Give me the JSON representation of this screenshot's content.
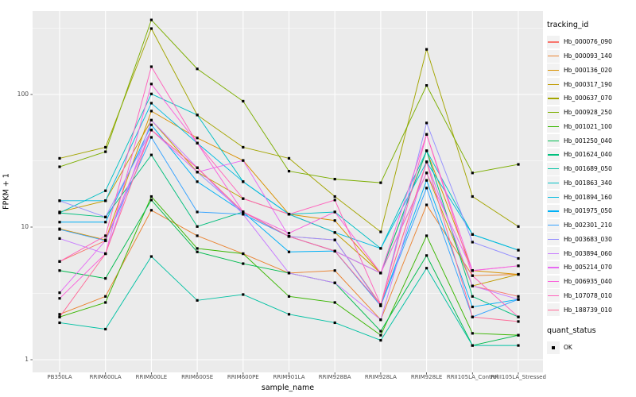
{
  "figure": {
    "y_axis": {
      "title": "FPKM + 1",
      "ticks": [
        {
          "label": "100",
          "value": 100
        },
        {
          "label": "10",
          "value": 10
        },
        {
          "label": "1",
          "value": 1
        }
      ]
    },
    "x_axis": {
      "title": "sample_name"
    },
    "legend": {
      "tracking_title": "tracking_id",
      "quant_title": "quant_status",
      "quant_item_label": "OK"
    },
    "colors": {
      "panel_bg": "#EBEBEB",
      "grid": "#FFFFFF",
      "tick_text": "#4D4D4D",
      "point": "#000000",
      "legend_key_bg": "#F2F2F2"
    }
  },
  "chart_data": {
    "type": "line",
    "title": "",
    "xlabel": "sample_name",
    "ylabel": "FPKM + 1",
    "y_scale": "log10",
    "ylim": [
      0.8,
      430
    ],
    "grid": true,
    "legend_position": "right",
    "point_shape": "filled-square",
    "point_status_label": "OK",
    "x_categories": [
      "PB350LA",
      "RRIM600LA",
      "RRIM600LE",
      "RRIM600SE",
      "RRIM600PE",
      "RRIM901LA",
      "RRIM928BA",
      "RRIM928LA",
      "RRIM928LE",
      "RRII105LA_Control",
      "RRII105LA_Stressed"
    ],
    "series": [
      {
        "name": "Hb_000076_090",
        "color": "#F8766D",
        "values": [
          5.5,
          7.9,
          54,
          28,
          13,
          8.5,
          8.0,
          2.6,
          31,
          3.6,
          3.0
        ]
      },
      {
        "name": "Hb_000093_140",
        "color": "#EA8331",
        "values": [
          2.2,
          3.0,
          13.4,
          8.6,
          6.3,
          4.5,
          4.7,
          2.0,
          14.7,
          4.3,
          4.4
        ]
      },
      {
        "name": "Hb_000136_020",
        "color": "#D89000",
        "values": [
          9.7,
          8.0,
          75,
          47,
          31.8,
          12.5,
          11.2,
          4.5,
          37.6,
          4.7,
          4.4
        ]
      },
      {
        "name": "Hb_000317_190",
        "color": "#C09B00",
        "values": [
          13,
          15.8,
          64,
          26,
          16.4,
          12.5,
          9.1,
          4.5,
          25.6,
          3.6,
          4.4
        ]
      },
      {
        "name": "Hb_000637_070",
        "color": "#A3A500",
        "values": [
          33,
          40,
          314,
          70,
          40,
          33,
          17,
          9.2,
          219,
          17,
          10.1
        ]
      },
      {
        "name": "Hb_000928_250",
        "color": "#7CAE00",
        "values": [
          28.5,
          37,
          365,
          156,
          89,
          26.4,
          23,
          21.6,
          117,
          25.6,
          29.7
        ]
      },
      {
        "name": "Hb_001021_100",
        "color": "#39B600",
        "values": [
          2.1,
          2.7,
          17,
          6.9,
          6.3,
          3.0,
          2.7,
          1.53,
          8.6,
          1.58,
          1.53
        ]
      },
      {
        "name": "Hb_001250_040",
        "color": "#00BB4E",
        "values": [
          4.7,
          4.1,
          16,
          6.5,
          5.3,
          4.5,
          3.8,
          1.64,
          6.1,
          1.28,
          1.53
        ]
      },
      {
        "name": "Hb_001624_040",
        "color": "#00BF7D",
        "values": [
          12.8,
          11.9,
          35,
          10.1,
          13,
          8.5,
          6.6,
          4.5,
          37.6,
          3.0,
          2.1
        ]
      },
      {
        "name": "Hb_001689_050",
        "color": "#00C1A3",
        "values": [
          1.9,
          1.7,
          6.0,
          2.8,
          3.1,
          2.2,
          1.9,
          1.4,
          4.9,
          1.28,
          1.28
        ]
      },
      {
        "name": "Hb_001863_340",
        "color": "#00BFC4",
        "values": [
          12.8,
          18.8,
          101,
          70,
          22,
          12.5,
          13,
          6.9,
          37.6,
          8.8,
          6.7
        ]
      },
      {
        "name": "Hb_001894_160",
        "color": "#00BAE0",
        "values": [
          15.8,
          15.8,
          86,
          43,
          22,
          12.5,
          9.1,
          6.9,
          31,
          8.8,
          6.7
        ]
      },
      {
        "name": "Hb_001975_050",
        "color": "#00B0F6",
        "values": [
          10.9,
          10.9,
          59,
          22,
          13,
          6.5,
          6.6,
          2.55,
          22.5,
          2.5,
          2.85
        ]
      },
      {
        "name": "Hb_002301_210",
        "color": "#35A2FF",
        "values": [
          9.6,
          7.9,
          47.5,
          13,
          12.5,
          8.5,
          6.6,
          2.55,
          19.7,
          2.1,
          2.85
        ]
      },
      {
        "name": "Hb_003683_030",
        "color": "#9590FF",
        "values": [
          15.8,
          11.9,
          54,
          26,
          13,
          8.5,
          8.0,
          2.55,
          61,
          7.7,
          5.8
        ]
      },
      {
        "name": "Hb_003894_060",
        "color": "#C77CFF",
        "values": [
          8.2,
          6.3,
          64,
          28,
          12.5,
          4.5,
          3.8,
          2.0,
          31,
          3.6,
          2.85
        ]
      },
      {
        "name": "Hb_005214_070",
        "color": "#E76BF3",
        "values": [
          3.2,
          7.9,
          54,
          26,
          31.8,
          8.5,
          6.6,
          4.5,
          25.6,
          4.7,
          5.1
        ]
      },
      {
        "name": "Hb_006935_040",
        "color": "#FA62DB",
        "values": [
          2.9,
          6.3,
          120,
          43,
          13,
          9.0,
          13,
          4.5,
          50,
          4.7,
          5.1
        ]
      },
      {
        "name": "Hb_107078_010",
        "color": "#FF62BC",
        "values": [
          5.5,
          8.6,
          162,
          43,
          16.4,
          12.5,
          16,
          2.6,
          50,
          4.3,
          2.1
        ]
      },
      {
        "name": "Hb_188739_010",
        "color": "#FF6A98",
        "values": [
          2.1,
          6.3,
          54,
          28,
          13,
          8.5,
          6.6,
          2.6,
          31,
          2.1,
          1.94
        ]
      }
    ]
  }
}
